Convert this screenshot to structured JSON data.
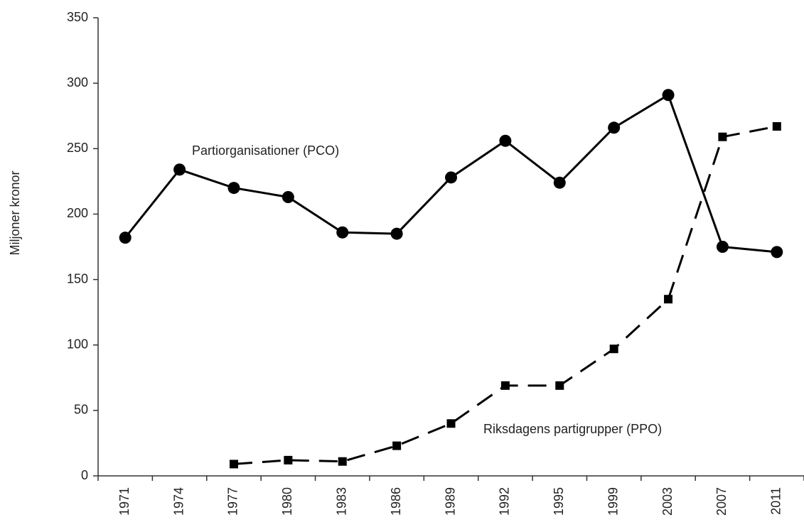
{
  "chart_data": {
    "type": "line",
    "y_label": "Miljoner kronor",
    "categories": [
      "1971",
      "1974",
      "1977",
      "1980",
      "1983",
      "1986",
      "1989",
      "1992",
      "1995",
      "1999",
      "2003",
      "2007",
      "2011"
    ],
    "series": [
      {
        "name": "Partiorganisationer (PCO)",
        "color": "#000000",
        "marker": "circle",
        "line_style": "solid",
        "values": [
          182,
          234,
          220,
          213,
          186,
          185,
          228,
          256,
          224,
          266,
          291,
          175,
          171
        ]
      },
      {
        "name": "Riksdagens partigrupper (PPO)",
        "color": "#000000",
        "marker": "square",
        "line_style": "dashed",
        "values": [
          null,
          null,
          9,
          12,
          11,
          23,
          40,
          69,
          69,
          97,
          135,
          259,
          267
        ]
      }
    ],
    "ylim": [
      0,
      350
    ],
    "yticks": [
      0,
      50,
      100,
      150,
      200,
      250,
      300,
      350
    ],
    "grid": false
  }
}
